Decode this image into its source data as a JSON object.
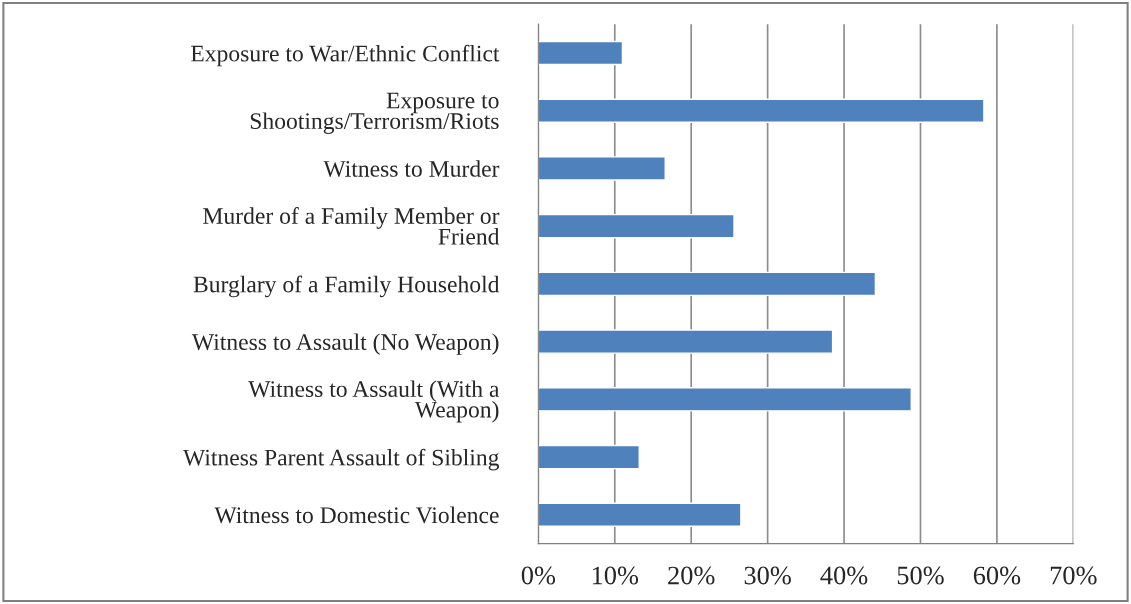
{
  "chart_data": {
    "type": "bar",
    "orientation": "horizontal",
    "categories": [
      "Exposure to War/Ethnic Conflict",
      "Exposure to\nShootings/Terrorism/Riots",
      "Witness to Murder",
      "Murder of a Family Member or\nFriend",
      "Burglary of a Family Household",
      "Witness to Assault (No Weapon)",
      "Witness to Assault (With a\nWeapon)",
      "Witness Parent Assault of Sibling",
      "Witness to Domestic Violence"
    ],
    "values": [
      11.0,
      58.3,
      16.6,
      25.6,
      44.1,
      38.5,
      48.8,
      13.2,
      26.5
    ],
    "color": "#4f81bd",
    "xlim": [
      0,
      70
    ],
    "xticks": [
      {
        "value": 0,
        "label": "0%"
      },
      {
        "value": 10,
        "label": "10%"
      },
      {
        "value": 20,
        "label": "20%"
      },
      {
        "value": 30,
        "label": "30%"
      },
      {
        "value": 40,
        "label": "40%"
      },
      {
        "value": 50,
        "label": "50%"
      },
      {
        "value": 60,
        "label": "60%"
      },
      {
        "value": 70,
        "label": "70%"
      }
    ],
    "grid": "x"
  }
}
